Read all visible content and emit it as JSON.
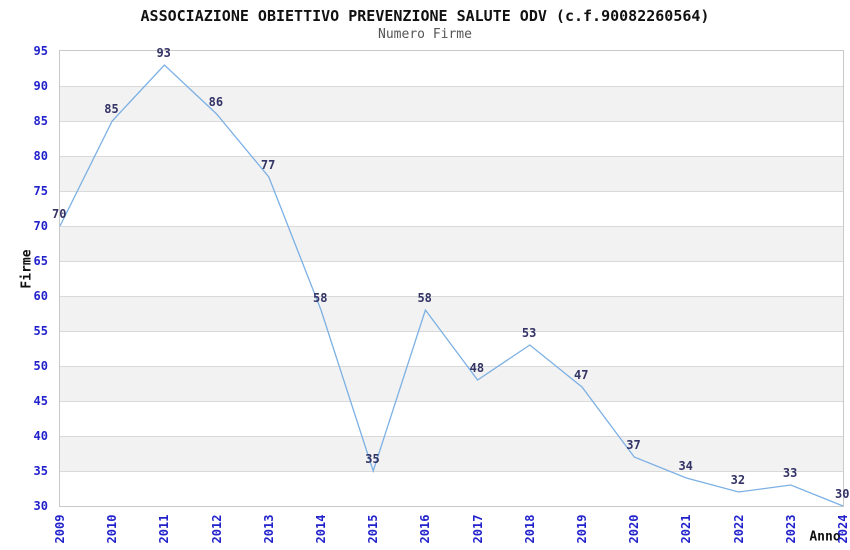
{
  "chart": {
    "title": "ASSOCIAZIONE OBIETTIVO PREVENZIONE SALUTE ODV (c.f.90082260564)",
    "subtitle": "Numero Firme",
    "y_axis_title": "Firme",
    "x_axis_title": "Anno"
  },
  "colors": {
    "line": "#7cb0e4",
    "tick_label": "#2222cc",
    "data_label": "#333366",
    "band_shaded": "#f2f2f2",
    "band_plain": "#ffffff",
    "gridline": "#d9d9d9",
    "plot_border": "#c9c9c9",
    "title": "#111111",
    "subtitle": "#555555"
  },
  "chart_data": {
    "type": "line",
    "title": "ASSOCIAZIONE OBIETTIVO PREVENZIONE SALUTE ODV (c.f.90082260564)",
    "subtitle": "Numero Firme",
    "xlabel": "Anno",
    "ylabel": "Firme",
    "categories": [
      "2009",
      "2010",
      "2011",
      "2012",
      "2013",
      "2014",
      "2015",
      "2016",
      "2017",
      "2018",
      "2019",
      "2020",
      "2021",
      "2022",
      "2023",
      "2024"
    ],
    "values": [
      70,
      85,
      93,
      86,
      77,
      58,
      35,
      58,
      48,
      53,
      47,
      37,
      34,
      32,
      33,
      30
    ],
    "ylim": [
      30,
      95
    ],
    "y_ticks": [
      95,
      90,
      85,
      80,
      75,
      70,
      65,
      60,
      55,
      50,
      45,
      40,
      35,
      30
    ],
    "y_tick_interval": 5,
    "grid": "horizontal",
    "background_bands": "alternating 5-unit bands, shaded 85-90 / 75-80 / 65-70 / 55-60 / 45-50 / 35-40",
    "legend": "none",
    "data_labels": true,
    "x_tick_rotation": -90
  }
}
